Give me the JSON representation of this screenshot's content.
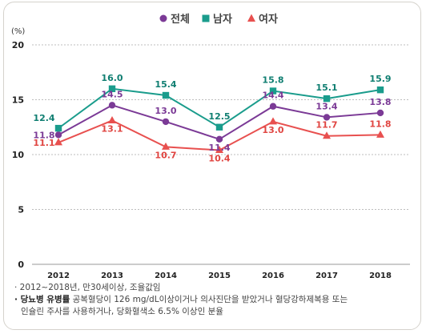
{
  "chart_data": {
    "type": "line",
    "unit_label": "(%)",
    "x": [
      "2012",
      "2013",
      "2014",
      "2015",
      "2016",
      "2017",
      "2018"
    ],
    "ylim": [
      0,
      20
    ],
    "yticks": [
      "0",
      "5",
      "10",
      "15",
      "20"
    ],
    "grid": "horizontal-dashed",
    "legend_position": "top-center",
    "series": [
      {
        "name": "전체",
        "marker": "circle",
        "color": "#7b3a96",
        "label_color": "#7b3a96",
        "values": [
          11.8,
          14.5,
          13.0,
          11.4,
          14.4,
          13.4,
          13.8
        ],
        "labels": [
          "11.8",
          "14.5",
          "13.0",
          "11.4",
          "14.4",
          "13.4",
          "13.8"
        ]
      },
      {
        "name": "남자",
        "marker": "square",
        "color": "#1a9c8c",
        "label_color": "#0f7e71",
        "values": [
          12.4,
          16.0,
          15.4,
          12.5,
          15.8,
          15.1,
          15.9
        ],
        "labels": [
          "12.4",
          "16.0",
          "15.4",
          "12.5",
          "15.8",
          "15.1",
          "15.9"
        ]
      },
      {
        "name": "여자",
        "marker": "triangle",
        "color": "#e8504f",
        "label_color": "#e04541",
        "values": [
          11.1,
          13.1,
          10.7,
          10.4,
          13.0,
          11.7,
          11.8
        ],
        "labels": [
          "11.1",
          "13.1",
          "10.7",
          "10.4",
          "13.0",
          "11.7",
          "11.8"
        ]
      }
    ]
  },
  "notes": {
    "line1": "· 2012~2018년, 만30세이상, 조율값임",
    "line2_label": "· 당뇨병 유병률",
    "line2_text": "공복혈당이 126 mg/dL이상이거나 의사진단을 받았거나 혈당강하제복용 또는",
    "line3": "인슐린 주사를 사용하거나, 당화혈색소 6.5% 이상인 분율"
  }
}
